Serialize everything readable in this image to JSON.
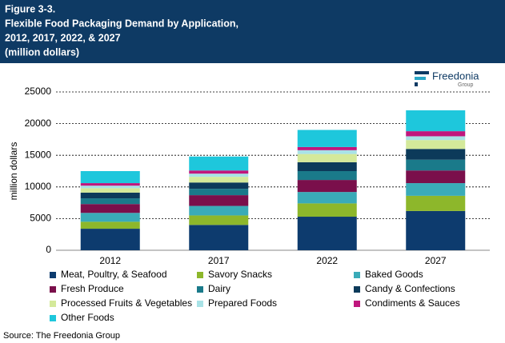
{
  "header": {
    "title_lines": [
      "Figure 3-3.",
      "Flexible Food Packaging Demand by Application,",
      "2012, 2017, 2022, & 2027",
      "(million dollars)"
    ]
  },
  "logo": {
    "name": "Freedonia",
    "sub": "Group"
  },
  "source": "Source: The Freedonia Group",
  "chart_data": {
    "type": "stacked_bar",
    "categories": [
      "2012",
      "2017",
      "2022",
      "2027"
    ],
    "y_label": "million dollars",
    "ylim": [
      0,
      25000
    ],
    "yticks": [
      0,
      5000,
      10000,
      15000,
      20000,
      25000
    ],
    "grid": true,
    "series": [
      {
        "name": "Meat, Poultry, & Seafood",
        "color": "#0d3b6e",
        "values": [
          3400,
          4000,
          5300,
          6200
        ]
      },
      {
        "name": "Savory Snacks",
        "color": "#8db72b",
        "values": [
          1100,
          1500,
          2100,
          2400
        ]
      },
      {
        "name": "Baked Goods",
        "color": "#3aabb8",
        "values": [
          1400,
          1500,
          1800,
          2000
        ]
      },
      {
        "name": "Fresh Produce",
        "color": "#7a0f4b",
        "values": [
          1400,
          1700,
          1900,
          2000
        ]
      },
      {
        "name": "Dairy",
        "color": "#1a7a8a",
        "values": [
          900,
          1000,
          1400,
          1700
        ]
      },
      {
        "name": "Candy & Confections",
        "color": "#0c3a5a",
        "values": [
          900,
          1000,
          1400,
          1700
        ]
      },
      {
        "name": "Processed Fruits & Vegetables",
        "color": "#d4e99a",
        "values": [
          700,
          900,
          1300,
          1400
        ]
      },
      {
        "name": "Prepared Foods",
        "color": "#a8e2e6",
        "values": [
          400,
          500,
          600,
          600
        ]
      },
      {
        "name": "Condiments & Sauces",
        "color": "#c0177d",
        "values": [
          400,
          500,
          500,
          800
        ]
      },
      {
        "name": "Other Foods",
        "color": "#1ec7dc",
        "values": [
          1900,
          2200,
          2700,
          3300
        ]
      }
    ]
  }
}
